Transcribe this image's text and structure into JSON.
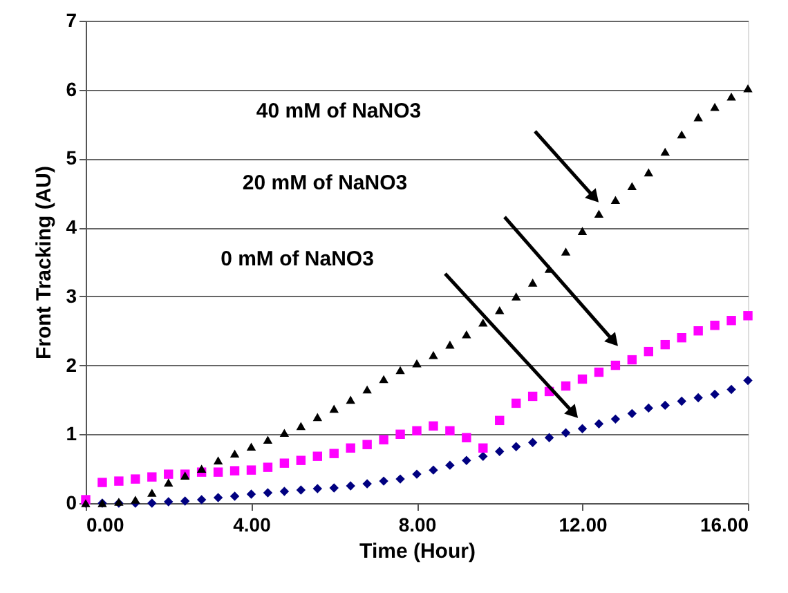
{
  "chart_data": {
    "type": "scatter",
    "xlabel": "Time (Hour)",
    "ylabel": "Front Tracking (AU)",
    "x": [
      0,
      0.4,
      0.8,
      1.2,
      1.6,
      2.0,
      2.4,
      2.8,
      3.2,
      3.6,
      4.0,
      4.4,
      4.8,
      5.2,
      5.6,
      6.0,
      6.4,
      6.8,
      7.2,
      7.6,
      8.0,
      8.4,
      8.8,
      9.2,
      9.6,
      10.0,
      10.4,
      10.8,
      11.2,
      11.6,
      12.0,
      12.4,
      12.8,
      13.2,
      13.6,
      14.0,
      14.4,
      14.8,
      15.2,
      15.6,
      16.0
    ],
    "series": [
      {
        "color": "#000080",
        "marker": "diamond",
        "values": [
          0,
          0,
          0,
          0,
          0,
          0.02,
          0.03,
          0.05,
          0.08,
          0.1,
          0.13,
          0.15,
          0.17,
          0.19,
          0.21,
          0.22,
          0.25,
          0.28,
          0.32,
          0.35,
          0.42,
          0.48,
          0.55,
          0.62,
          0.68,
          0.75,
          0.82,
          0.88,
          0.95,
          1.02,
          1.08,
          1.15,
          1.22,
          1.3,
          1.38,
          1.42,
          1.48,
          1.53,
          1.58,
          1.65,
          1.78
        ]
      },
      {
        "color": "#ff00ff",
        "marker": "square",
        "values": [
          0.05,
          0.3,
          0.32,
          0.35,
          0.38,
          0.42,
          0.42,
          0.45,
          0.45,
          0.47,
          0.48,
          0.52,
          0.58,
          0.62,
          0.68,
          0.72,
          0.8,
          0.85,
          0.92,
          1.0,
          1.05,
          1.12,
          1.05,
          0.95,
          0.8,
          1.2,
          1.45,
          1.55,
          1.62,
          1.7,
          1.8,
          1.9,
          2.0,
          2.08,
          2.2,
          2.3,
          2.4,
          2.5,
          2.58,
          2.65,
          2.72
        ]
      },
      {
        "color": "#000000",
        "marker": "triangle",
        "values": [
          0,
          0,
          0.02,
          0.05,
          0.15,
          0.3,
          0.4,
          0.5,
          0.62,
          0.72,
          0.82,
          0.92,
          1.02,
          1.12,
          1.25,
          1.37,
          1.5,
          1.65,
          1.8,
          1.93,
          2.03,
          2.15,
          2.3,
          2.45,
          2.62,
          2.8,
          3.0,
          3.2,
          3.4,
          3.65,
          3.95,
          4.2,
          4.4,
          4.6,
          4.8,
          5.1,
          5.35,
          5.6,
          5.75,
          5.9,
          6.02
        ]
      }
    ],
    "annotations": [
      "40 mM of NaNO3",
      "20 mM of NaNO3",
      "0 mM of NaNO3"
    ],
    "xlim": [
      0,
      16
    ],
    "xticks": [
      {
        "value": 0,
        "label": "0.00"
      },
      {
        "value": 4,
        "label": "4.00"
      },
      {
        "value": 8,
        "label": "8.00"
      },
      {
        "value": 12,
        "label": "12.00"
      },
      {
        "value": 16,
        "label": "16.00"
      }
    ],
    "ylim": [
      0,
      7
    ],
    "yticks": [
      0,
      1,
      2,
      3,
      4,
      5,
      6,
      7
    ],
    "grid": "y"
  }
}
